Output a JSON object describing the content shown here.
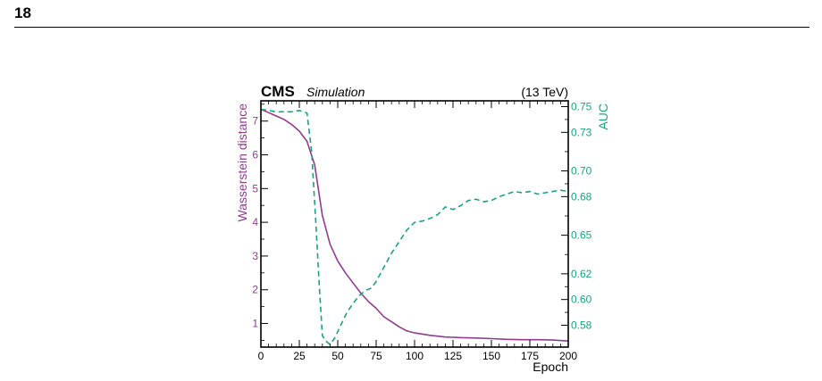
{
  "page": {
    "number": "18"
  },
  "figure": {
    "experiment": "CMS",
    "tag": "Simulation",
    "energy": "(13 TeV)"
  },
  "colors": {
    "wasserstein": "#8e3d8c",
    "auc": "#1f9e84",
    "axis": "#000000"
  },
  "chart_data": {
    "type": "line",
    "xlabel": "Epoch",
    "ylabel_left": "Wasserstein distance",
    "ylabel_right": "AUC",
    "xlim": [
      0,
      200
    ],
    "ylim_left": [
      0.3,
      7.6
    ],
    "ylim_right": [
      0.563,
      0.7545
    ],
    "x_ticks": [
      0,
      25,
      50,
      75,
      100,
      125,
      150,
      175,
      200
    ],
    "y_left_ticks": [
      1,
      2,
      3,
      4,
      5,
      6,
      7
    ],
    "y_right_ticks": [
      0.58,
      0.6,
      0.62,
      0.65,
      0.68,
      0.7,
      0.73,
      0.75
    ],
    "y_right_tick_labels": [
      "0.58",
      "0.60",
      "0.62",
      "0.65",
      "0.68",
      "0.70",
      "0.73",
      "0.75"
    ],
    "series": [
      {
        "name": "Wasserstein distance",
        "axis": "left",
        "style": "solid",
        "x": [
          0,
          5,
          10,
          15,
          20,
          25,
          30,
          35,
          40,
          45,
          50,
          55,
          60,
          65,
          70,
          75,
          80,
          85,
          90,
          95,
          100,
          110,
          120,
          130,
          140,
          150,
          160,
          170,
          180,
          190,
          200
        ],
        "values": [
          7.35,
          7.25,
          7.15,
          7.05,
          6.9,
          6.7,
          6.4,
          5.7,
          4.2,
          3.35,
          2.85,
          2.5,
          2.2,
          1.9,
          1.65,
          1.45,
          1.2,
          1.05,
          0.9,
          0.78,
          0.72,
          0.65,
          0.6,
          0.58,
          0.57,
          0.55,
          0.53,
          0.52,
          0.52,
          0.51,
          0.48
        ]
      },
      {
        "name": "AUC",
        "axis": "right",
        "style": "dashed",
        "x": [
          0,
          5,
          10,
          15,
          20,
          25,
          30,
          33,
          36,
          38,
          40,
          42,
          45,
          48,
          52,
          56,
          60,
          64,
          68,
          72,
          75,
          80,
          85,
          90,
          95,
          100,
          105,
          110,
          115,
          120,
          125,
          130,
          135,
          140,
          145,
          150,
          155,
          160,
          165,
          170,
          175,
          180,
          185,
          190,
          195,
          200
        ],
        "values": [
          0.748,
          0.747,
          0.746,
          0.746,
          0.746,
          0.747,
          0.745,
          0.715,
          0.655,
          0.61,
          0.572,
          0.568,
          0.565,
          0.57,
          0.58,
          0.59,
          0.597,
          0.603,
          0.607,
          0.609,
          0.614,
          0.625,
          0.636,
          0.645,
          0.654,
          0.66,
          0.661,
          0.663,
          0.666,
          0.672,
          0.67,
          0.673,
          0.677,
          0.678,
          0.676,
          0.677,
          0.68,
          0.682,
          0.684,
          0.683,
          0.684,
          0.682,
          0.683,
          0.684,
          0.685,
          0.684
        ]
      }
    ],
    "grid": false,
    "legend": "none"
  }
}
